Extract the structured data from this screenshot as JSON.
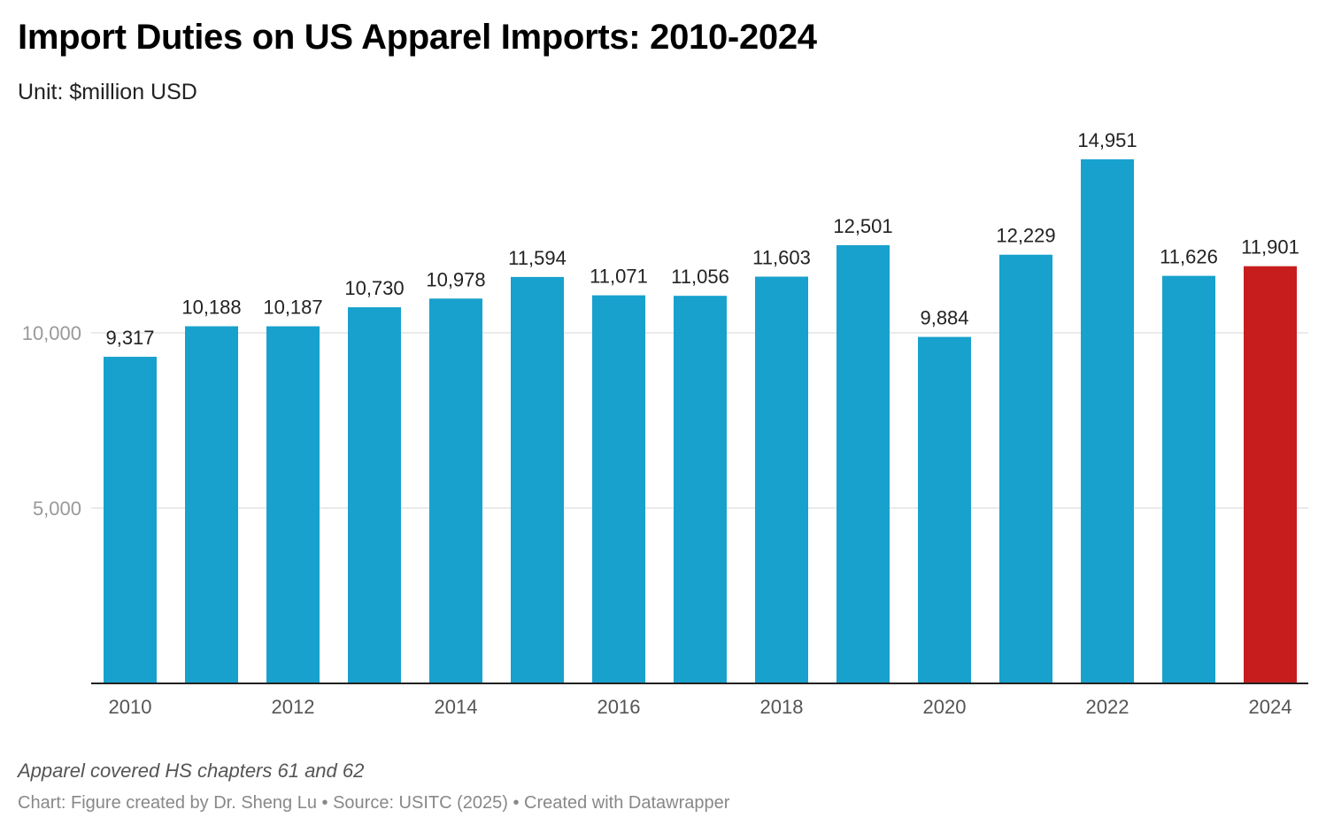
{
  "title": "Import Duties on US Apparel Imports: 2010-2024",
  "subtitle": "Unit: $million USD",
  "note": "Apparel covered HS chapters 61 and 62",
  "source": "Chart: Figure created by Dr. Sheng Lu • Source: USITC (2025) • Created with Datawrapper",
  "chart_data": {
    "type": "bar",
    "categories": [
      "2010",
      "2011",
      "2012",
      "2013",
      "2014",
      "2015",
      "2016",
      "2017",
      "2018",
      "2019",
      "2020",
      "2021",
      "2022",
      "2023",
      "2024"
    ],
    "values": [
      9317,
      10188,
      10187,
      10730,
      10978,
      11594,
      11071,
      11056,
      11603,
      12501,
      9884,
      12229,
      14951,
      11626,
      11901
    ],
    "data_labels": [
      "9,317",
      "10,188",
      "10,187",
      "10,730",
      "10,978",
      "11,594",
      "11,071",
      "11,056",
      "11,603",
      "12,501",
      "9,884",
      "12,229",
      "14,951",
      "11,626",
      "11,901"
    ],
    "x_tick_labels": [
      "2010",
      "2012",
      "2014",
      "2016",
      "2018",
      "2020",
      "2022",
      "2024"
    ],
    "y_ticks": [
      {
        "value": 5000,
        "label": "5,000"
      },
      {
        "value": 10000,
        "label": "10,000"
      }
    ],
    "ylim": [
      0,
      15000
    ],
    "grid": true,
    "colors": {
      "default": "#18a1cd",
      "highlight": "#c71e1d"
    },
    "highlight_category": "2024",
    "xlabel": "",
    "ylabel": ""
  }
}
